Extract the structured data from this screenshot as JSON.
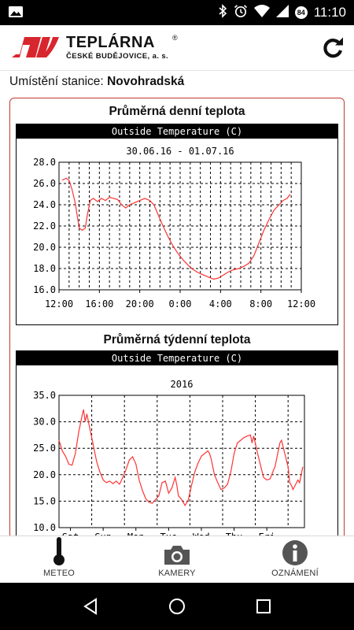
{
  "status_bar": {
    "time": "11:10",
    "badge": "84"
  },
  "header": {
    "logo_title": "TEPLÁRNA",
    "logo_reg": "®",
    "logo_subtitle": "ČESKÉ BUDĚJOVICE, a. s."
  },
  "station": {
    "label": "Umístění stanice:",
    "name": "Novohradská"
  },
  "daily": {
    "section_title": "Průměrná denní teplota",
    "chart_header": "Outside Temperature (C)"
  },
  "weekly": {
    "section_title": "Průměrná týdenní teplota",
    "chart_header": "Outside Temperature (C)"
  },
  "nav": {
    "meteo": "METEO",
    "kamery": "KAMERY",
    "oznameni": "OZNÁMENÍ"
  },
  "colors": {
    "line": "#ff3333",
    "accent": "#c0392b",
    "logo_red": "#d8262e"
  },
  "chart_data": [
    {
      "type": "line",
      "title": "Outside Temperature (C)",
      "subtitle": "30.06.16 - 01.07.16",
      "xlabel": "",
      "ylabel": "",
      "ylim": [
        16.0,
        28.0
      ],
      "yticks": [
        "16.0",
        "18.0",
        "20.0",
        "22.0",
        "24.0",
        "26.0",
        "28.0"
      ],
      "xlim": [
        12,
        36
      ],
      "xticks": [
        {
          "v": 12,
          "label": "12:00"
        },
        {
          "v": 16,
          "label": "16:00"
        },
        {
          "v": 20,
          "label": "20:00"
        },
        {
          "v": 24,
          "label": "0:00"
        },
        {
          "v": 28,
          "label": "4:00"
        },
        {
          "v": 32,
          "label": "8:00"
        },
        {
          "v": 36,
          "label": "12:00"
        }
      ],
      "grid": true,
      "series": [
        {
          "points": [
            [
              12.3,
              26.3
            ],
            [
              12.7,
              26.5
            ],
            [
              13.0,
              26.3
            ],
            [
              13.3,
              25.4
            ],
            [
              13.6,
              24.2
            ],
            [
              13.8,
              23.0
            ],
            [
              14.0,
              21.8
            ],
            [
              14.3,
              21.6
            ],
            [
              14.6,
              21.8
            ],
            [
              14.8,
              23.0
            ],
            [
              15.1,
              24.4
            ],
            [
              15.4,
              24.6
            ],
            [
              15.8,
              24.3
            ],
            [
              16.2,
              24.6
            ],
            [
              16.6,
              24.4
            ],
            [
              17.0,
              24.7
            ],
            [
              17.4,
              24.6
            ],
            [
              17.8,
              24.5
            ],
            [
              18.2,
              24.0
            ],
            [
              18.6,
              23.7
            ],
            [
              19.0,
              24.0
            ],
            [
              19.5,
              24.2
            ],
            [
              20.0,
              24.4
            ],
            [
              20.5,
              24.6
            ],
            [
              21.0,
              24.4
            ],
            [
              21.4,
              24.0
            ],
            [
              21.8,
              23.1
            ],
            [
              22.3,
              22.0
            ],
            [
              22.8,
              21.0
            ],
            [
              23.3,
              20.1
            ],
            [
              23.8,
              19.4
            ],
            [
              24.3,
              18.8
            ],
            [
              24.8,
              18.3
            ],
            [
              25.3,
              17.9
            ],
            [
              25.8,
              17.6
            ],
            [
              26.3,
              17.4
            ],
            [
              26.8,
              17.2
            ],
            [
              27.3,
              17.0
            ],
            [
              27.8,
              17.1
            ],
            [
              28.3,
              17.4
            ],
            [
              28.8,
              17.7
            ],
            [
              29.3,
              17.9
            ],
            [
              29.8,
              18.0
            ],
            [
              30.3,
              18.2
            ],
            [
              30.8,
              18.5
            ],
            [
              31.3,
              19.2
            ],
            [
              31.8,
              20.4
            ],
            [
              32.3,
              21.6
            ],
            [
              32.8,
              22.6
            ],
            [
              33.3,
              23.5
            ],
            [
              33.8,
              24.0
            ],
            [
              34.2,
              24.4
            ],
            [
              34.6,
              24.6
            ],
            [
              34.9,
              25.0
            ]
          ]
        }
      ]
    },
    {
      "type": "line",
      "title": "Outside Temperature (C)",
      "subtitle": "2016",
      "xlabel": "",
      "ylabel": "",
      "ylim": [
        10.0,
        35.0
      ],
      "yticks": [
        "10.0",
        "15.0",
        "20.0",
        "25.0",
        "30.0",
        "35.0"
      ],
      "xlim": [
        0,
        7.5
      ],
      "xticks": [
        {
          "v": 0.35,
          "label": "Sat"
        },
        {
          "v": 1.35,
          "label": "Sun"
        },
        {
          "v": 2.35,
          "label": "Mon"
        },
        {
          "v": 3.35,
          "label": "Tue"
        },
        {
          "v": 4.35,
          "label": "Wed"
        },
        {
          "v": 5.35,
          "label": "Thu"
        },
        {
          "v": 6.35,
          "label": "Fri"
        }
      ],
      "grid": true,
      "series": [
        {
          "points": [
            [
              0.0,
              26.5
            ],
            [
              0.1,
              24.5
            ],
            [
              0.2,
              23.5
            ],
            [
              0.3,
              22.0
            ],
            [
              0.4,
              21.8
            ],
            [
              0.5,
              24.0
            ],
            [
              0.6,
              28.0
            ],
            [
              0.7,
              31.0
            ],
            [
              0.75,
              32.3
            ],
            [
              0.8,
              30.0
            ],
            [
              0.85,
              31.5
            ],
            [
              0.95,
              28.5
            ],
            [
              1.05,
              25.5
            ],
            [
              1.15,
              22.5
            ],
            [
              1.25,
              20.5
            ],
            [
              1.35,
              19.0
            ],
            [
              1.45,
              18.5
            ],
            [
              1.55,
              18.8
            ],
            [
              1.65,
              18.3
            ],
            [
              1.75,
              18.8
            ],
            [
              1.85,
              18.2
            ],
            [
              1.95,
              19.5
            ],
            [
              2.05,
              21.0
            ],
            [
              2.15,
              22.8
            ],
            [
              2.25,
              23.4
            ],
            [
              2.35,
              22.0
            ],
            [
              2.45,
              19.0
            ],
            [
              2.55,
              17.0
            ],
            [
              2.65,
              15.5
            ],
            [
              2.75,
              14.8
            ],
            [
              2.85,
              14.6
            ],
            [
              2.95,
              15.3
            ],
            [
              3.05,
              16.0
            ],
            [
              3.15,
              18.5
            ],
            [
              3.25,
              18.8
            ],
            [
              3.35,
              16.5
            ],
            [
              3.45,
              17.5
            ],
            [
              3.55,
              19.5
            ],
            [
              3.6,
              18.0
            ],
            [
              3.65,
              16.0
            ],
            [
              3.75,
              15.3
            ],
            [
              3.85,
              14.2
            ],
            [
              3.95,
              15.2
            ],
            [
              4.05,
              18.0
            ],
            [
              4.15,
              20.5
            ],
            [
              4.25,
              22.2
            ],
            [
              4.35,
              23.5
            ],
            [
              4.45,
              24.0
            ],
            [
              4.55,
              24.5
            ],
            [
              4.6,
              24.0
            ],
            [
              4.65,
              23.0
            ],
            [
              4.75,
              20.0
            ],
            [
              4.85,
              18.5
            ],
            [
              4.95,
              17.2
            ],
            [
              5.05,
              17.5
            ],
            [
              5.15,
              18.2
            ],
            [
              5.25,
              20.5
            ],
            [
              5.35,
              24.0
            ],
            [
              5.45,
              26.0
            ],
            [
              5.55,
              26.5
            ],
            [
              5.65,
              27.0
            ],
            [
              5.75,
              27.3
            ],
            [
              5.85,
              27.5
            ],
            [
              5.9,
              26.0
            ],
            [
              5.95,
              27.3
            ],
            [
              6.05,
              24.5
            ],
            [
              6.15,
              22.0
            ],
            [
              6.25,
              19.5
            ],
            [
              6.35,
              19.0
            ],
            [
              6.45,
              19.2
            ],
            [
              6.55,
              20.8
            ],
            [
              6.6,
              21.5
            ],
            [
              6.7,
              24.5
            ],
            [
              6.75,
              26.0
            ],
            [
              6.8,
              26.5
            ],
            [
              6.9,
              24.0
            ],
            [
              7.0,
              21.5
            ],
            [
              7.05,
              18.5
            ],
            [
              7.1,
              18.0
            ],
            [
              7.15,
              17.2
            ],
            [
              7.2,
              17.8
            ],
            [
              7.3,
              19.0
            ],
            [
              7.35,
              18.5
            ],
            [
              7.45,
              21.5
            ]
          ]
        }
      ]
    }
  ]
}
